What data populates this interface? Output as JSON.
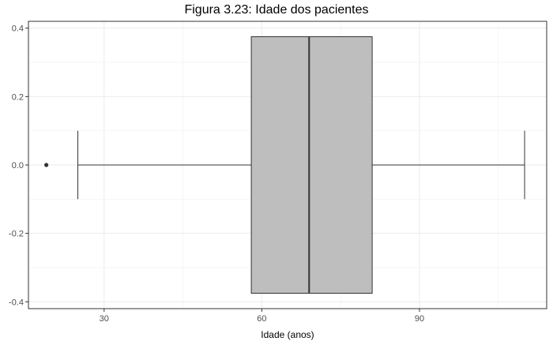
{
  "chart_data": {
    "type": "boxplot",
    "title": "Figura 3.23: Idade dos pacientes",
    "xlabel": "Idade (anos)",
    "ylabel": "",
    "xlim": [
      15.6,
      114.2
    ],
    "ylim": [
      -0.42,
      0.42
    ],
    "x_ticks": [
      30,
      60,
      90
    ],
    "y_ticks": [
      -0.4,
      -0.2,
      0.0,
      0.2,
      0.4
    ],
    "y_tick_labels": [
      "-0.4",
      "-0.2",
      "0.0",
      "0.2",
      "0.4"
    ],
    "grid": true,
    "box": {
      "whisker_low": 25,
      "q1": 58,
      "median": 69,
      "q3": 81,
      "whisker_high": 110,
      "outliers": [
        19
      ],
      "fill": "#bebebe",
      "stroke": "#333333"
    }
  }
}
